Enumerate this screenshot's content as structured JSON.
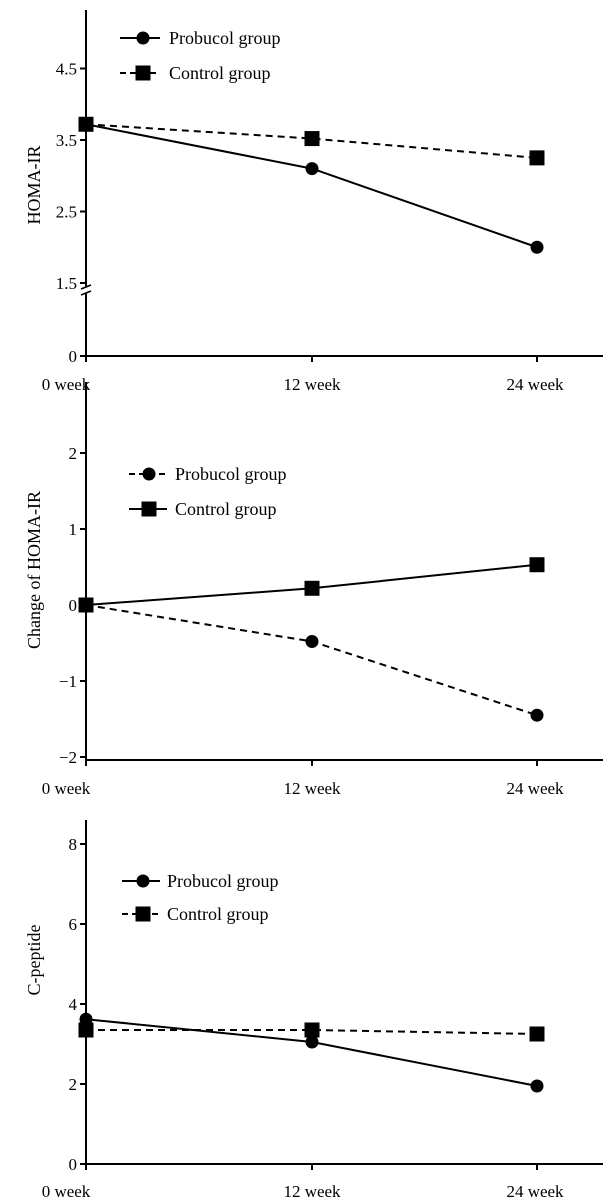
{
  "chart_data": [
    {
      "type": "line",
      "ylabel": "HOMA-IR",
      "xlabel": "",
      "categories": [
        "0 week",
        "12 week",
        "24 week"
      ],
      "ylim": [
        0,
        5.5
      ],
      "yticks": [
        "0",
        "1.5",
        "2.5",
        "3.5",
        "4.5"
      ],
      "ytick_values": [
        0,
        1.5,
        2.5,
        3.5,
        4.5
      ],
      "axis_break": "between 0 and 1.5",
      "legend_position": "top-left",
      "grid": false,
      "series": [
        {
          "name": "Probucol group",
          "values": [
            3.72,
            3.1,
            2.0
          ],
          "marker": "circle",
          "line": "solid"
        },
        {
          "name": "Control group",
          "values": [
            3.72,
            3.52,
            3.25
          ],
          "marker": "square",
          "line": "dashed"
        }
      ]
    },
    {
      "type": "line",
      "ylabel": "Change of HOMA-IR",
      "xlabel": "",
      "categories": [
        "0 week",
        "12 week",
        "24 week"
      ],
      "ylim": [
        -2,
        2.5
      ],
      "yticks": [
        "−2",
        "−1",
        "0",
        "1",
        "2"
      ],
      "ytick_values": [
        -2,
        -1,
        0,
        1,
        2
      ],
      "legend_position": "top-left",
      "grid": false,
      "series": [
        {
          "name": "Probucol group",
          "values": [
            0,
            -0.48,
            -1.45
          ],
          "marker": "circle",
          "line": "dashed"
        },
        {
          "name": "Control group",
          "values": [
            0,
            0.22,
            0.53
          ],
          "marker": "square",
          "line": "solid"
        }
      ]
    },
    {
      "type": "line",
      "ylabel": "C-peptide",
      "xlabel": "",
      "categories": [
        "0 week",
        "12 week",
        "24 week"
      ],
      "ylim": [
        0,
        8.7
      ],
      "yticks": [
        "0",
        "2",
        "4",
        "6",
        "8"
      ],
      "ytick_values": [
        0,
        2,
        4,
        6,
        8
      ],
      "legend_position": "top-left",
      "grid": false,
      "series": [
        {
          "name": "Probucol group",
          "values": [
            3.62,
            3.05,
            1.95
          ],
          "marker": "circle",
          "line": "solid"
        },
        {
          "name": "Control group",
          "values": [
            3.35,
            3.35,
            3.25
          ],
          "marker": "square",
          "line": "dashed"
        }
      ]
    }
  ]
}
